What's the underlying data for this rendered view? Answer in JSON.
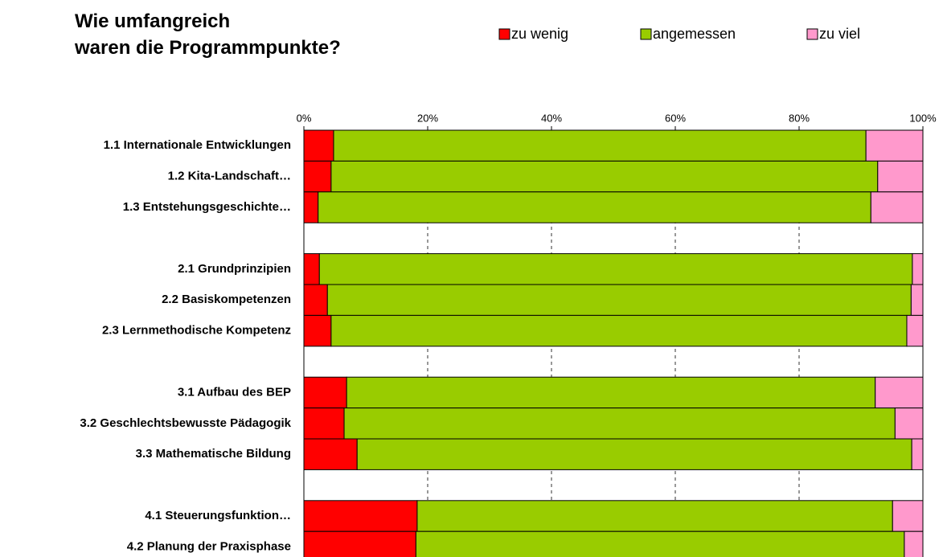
{
  "chart_data": {
    "type": "stacked-barh",
    "title": [
      "Wie umfangreich",
      "waren die Programmpunkte?"
    ],
    "categories": [
      "1.1 Internationale Entwicklungen",
      "1.2 Kita-Landschaft…",
      "1.3 Entstehungsgeschichte…",
      null,
      "2.1 Grundprinzipien",
      "2.2 Basiskompetenzen",
      "2.3 Lernmethodische Kompetenz",
      null,
      "3.1 Aufbau des BEP",
      "3.2 Geschlechtsbewusste Pädagogik",
      "3.3 Mathematische Bildung",
      null,
      "4.1 Steuerungsfunktion…",
      "4.2 Planung der Praxisphase"
    ],
    "series": [
      {
        "name": "zu wenig",
        "color": "#ff0000",
        "values": [
          4.8,
          4.4,
          2.3,
          null,
          2.5,
          3.8,
          4.4,
          null,
          6.9,
          6.5,
          8.6,
          null,
          18.3,
          18.1
        ]
      },
      {
        "name": "angemessen",
        "color": "#99cc00",
        "values": [
          86.0,
          88.3,
          89.3,
          null,
          95.8,
          94.3,
          93.0,
          null,
          85.4,
          89.0,
          89.6,
          null,
          76.8,
          78.9
        ]
      },
      {
        "name": "zu viel",
        "color": "#ff99cc",
        "values": [
          9.2,
          7.3,
          8.4,
          null,
          1.7,
          1.9,
          2.6,
          null,
          7.7,
          4.5,
          1.8,
          null,
          4.9,
          3.0
        ]
      }
    ],
    "xlim": [
      0,
      100
    ],
    "xticks": [
      {
        "value": 0,
        "label": "0%"
      },
      {
        "value": 20,
        "label": "20%"
      },
      {
        "value": 40,
        "label": "40%"
      },
      {
        "value": 60,
        "label": "60%"
      },
      {
        "value": 80,
        "label": "80%"
      },
      {
        "value": 100,
        "label": "100%"
      }
    ],
    "grid": true,
    "legend": "top"
  }
}
